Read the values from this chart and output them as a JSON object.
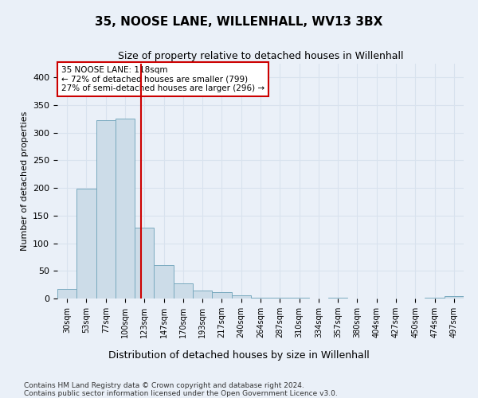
{
  "title1": "35, NOOSE LANE, WILLENHALL, WV13 3BX",
  "title2": "Size of property relative to detached houses in Willenhall",
  "xlabel": "Distribution of detached houses by size in Willenhall",
  "ylabel": "Number of detached properties",
  "bar_labels": [
    "30sqm",
    "53sqm",
    "77sqm",
    "100sqm",
    "123sqm",
    "147sqm",
    "170sqm",
    "193sqm",
    "217sqm",
    "240sqm",
    "264sqm",
    "287sqm",
    "310sqm",
    "334sqm",
    "357sqm",
    "380sqm",
    "404sqm",
    "427sqm",
    "450sqm",
    "474sqm",
    "497sqm"
  ],
  "bar_values": [
    17,
    199,
    322,
    325,
    128,
    60,
    27,
    15,
    11,
    6,
    2,
    1,
    1,
    0,
    1,
    0,
    0,
    0,
    0,
    2,
    5
  ],
  "bar_color": "#ccdce8",
  "bar_edge_color": "#7aaabf",
  "grid_color": "#d8e2ee",
  "background_color": "#eaf0f8",
  "red_line_x": 3.83,
  "annotation_text": "35 NOOSE LANE: 118sqm\n← 72% of detached houses are smaller (799)\n27% of semi-detached houses are larger (296) →",
  "annotation_box_color": "#ffffff",
  "annotation_box_edge": "#cc0000",
  "footer1": "Contains HM Land Registry data © Crown copyright and database right 2024.",
  "footer2": "Contains public sector information licensed under the Open Government Licence v3.0.",
  "ylim": [
    0,
    425
  ],
  "yticks": [
    0,
    50,
    100,
    150,
    200,
    250,
    300,
    350,
    400
  ]
}
